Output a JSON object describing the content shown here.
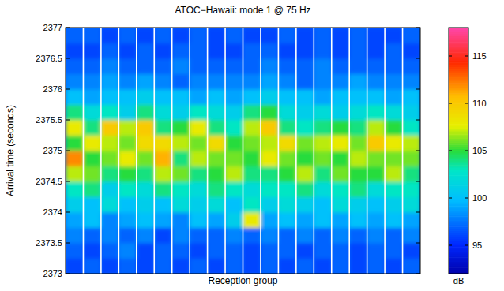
{
  "chart_data": {
    "type": "heatmap",
    "title": "ATOC−Hawaii:  mode 1 @ 75 Hz",
    "x_label": "Reception group",
    "y_label": "Arrival time (seconds)",
    "tick_labels": "y",
    "categories": [
      null,
      null,
      null,
      null,
      null,
      null,
      null,
      null,
      null,
      null,
      null,
      null,
      null,
      null,
      null,
      null,
      null,
      null,
      null,
      null
    ],
    "ylim": [
      2373,
      2377
    ],
    "yticks": [
      2373,
      2373.5,
      2374,
      2374.5,
      2375,
      2375.5,
      2376,
      2376.5,
      2377
    ],
    "y_edges": [
      2373,
      2373.25,
      2373.5,
      2373.75,
      2374,
      2374.25,
      2374.5,
      2374.75,
      2375,
      2375.25,
      2375.5,
      2375.75,
      2376,
      2376.25,
      2376.5,
      2376.75,
      2377
    ],
    "cells": [
      [
        96,
        97,
        98,
        99,
        101,
        103,
        107,
        112,
        105,
        108,
        104,
        100,
        98,
        97,
        96,
        97
      ],
      [
        97,
        96,
        97,
        100,
        100,
        104,
        106,
        105,
        108,
        104,
        102,
        99,
        98,
        97,
        96,
        97
      ],
      [
        96,
        97,
        98,
        98,
        102,
        101,
        104,
        106,
        107,
        110,
        103,
        100,
        99,
        98,
        97,
        96
      ],
      [
        97,
        98,
        97,
        99,
        100,
        103,
        105,
        108,
        106,
        107,
        101,
        100,
        98,
        97,
        96,
        97
      ],
      [
        96,
        96,
        98,
        100,
        101,
        102,
        104,
        106,
        109,
        110,
        104,
        101,
        99,
        97,
        97,
        96
      ],
      [
        97,
        97,
        96,
        99,
        100,
        104,
        107,
        111,
        109,
        104,
        102,
        100,
        98,
        97,
        96,
        97
      ],
      [
        96,
        97,
        98,
        98,
        102,
        103,
        106,
        104,
        107,
        105,
        101,
        100,
        97,
        98,
        97,
        96
      ],
      [
        97,
        96,
        97,
        100,
        101,
        102,
        104,
        107,
        106,
        108,
        103,
        99,
        98,
        97,
        97,
        97
      ],
      [
        96,
        97,
        97,
        99,
        102,
        104,
        105,
        106,
        109,
        104,
        102,
        100,
        98,
        97,
        96,
        96
      ],
      [
        97,
        97,
        98,
        101,
        100,
        103,
        107,
        106,
        105,
        103,
        101,
        99,
        98,
        97,
        96,
        97
      ],
      [
        96,
        96,
        97,
        108,
        103,
        102,
        104,
        105,
        106,
        107,
        104,
        100,
        98,
        97,
        97,
        96
      ],
      [
        97,
        97,
        98,
        99,
        101,
        103,
        104,
        108,
        107,
        110,
        105,
        101,
        99,
        98,
        97,
        96
      ],
      [
        96,
        97,
        97,
        100,
        102,
        103,
        105,
        106,
        109,
        104,
        102,
        100,
        98,
        97,
        96,
        97
      ],
      [
        97,
        96,
        98,
        99,
        101,
        104,
        107,
        105,
        106,
        103,
        101,
        100,
        97,
        97,
        96,
        96
      ],
      [
        96,
        97,
        97,
        100,
        100,
        102,
        104,
        106,
        107,
        104,
        102,
        99,
        98,
        98,
        97,
        97
      ],
      [
        97,
        97,
        98,
        99,
        102,
        103,
        106,
        105,
        108,
        105,
        101,
        100,
        98,
        97,
        96,
        96
      ],
      [
        96,
        96,
        97,
        100,
        101,
        104,
        105,
        107,
        106,
        104,
        102,
        100,
        99,
        97,
        97,
        97
      ],
      [
        97,
        97,
        98,
        99,
        100,
        102,
        105,
        106,
        110,
        107,
        103,
        100,
        98,
        97,
        96,
        96
      ],
      [
        96,
        97,
        97,
        100,
        101,
        103,
        107,
        106,
        108,
        105,
        102,
        99,
        98,
        97,
        97,
        96
      ],
      [
        97,
        96,
        98,
        99,
        102,
        103,
        104,
        106,
        107,
        103,
        101,
        100,
        98,
        97,
        96,
        97
      ]
    ],
    "color_label": "dB",
    "color_range": [
      92,
      118
    ],
    "color_ticks": [
      95,
      100,
      105,
      110,
      115
    ]
  }
}
